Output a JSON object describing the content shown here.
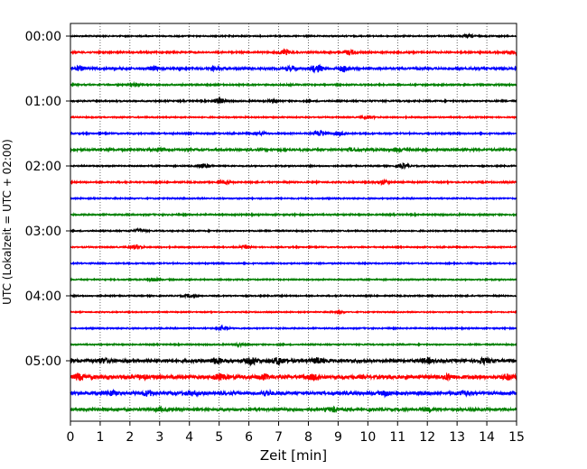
{
  "chart_data": {
    "type": "line",
    "title": "",
    "xlabel": "Zeit  [min]",
    "ylabel": "UTC (Lokalzeit = UTC + 02:00)",
    "xlim": [
      0,
      15
    ],
    "x_ticks": [
      "0",
      "1",
      "2",
      "3",
      "4",
      "5",
      "6",
      "7",
      "8",
      "9",
      "10",
      "11",
      "12",
      "13",
      "14",
      "15"
    ],
    "y_ticks": [
      "00:00",
      "01:00",
      "02:00",
      "03:00",
      "04:00",
      "05:00"
    ],
    "grid": "vertical dotted",
    "colors": [
      "#000000",
      "#ff0000",
      "#0000ff",
      "#008000"
    ],
    "trace_interval_min": 15,
    "traces": [
      {
        "start": "00:00",
        "color": "#000000",
        "noise": 0.6,
        "events": [
          [
            13.4,
            1.4
          ]
        ]
      },
      {
        "start": "00:15",
        "color": "#ff0000",
        "noise": 0.8,
        "events": [
          [
            7.2,
            2.6
          ],
          [
            9.4,
            2.2
          ],
          [
            14.9,
            1.6
          ]
        ]
      },
      {
        "start": "00:30",
        "color": "#0000ff",
        "noise": 1.0,
        "events": [
          [
            0.3,
            2.0
          ],
          [
            2.8,
            1.6
          ],
          [
            4.8,
            1.4
          ],
          [
            7.4,
            1.5
          ],
          [
            8.3,
            3.8
          ],
          [
            9.2,
            3.0
          ]
        ]
      },
      {
        "start": "00:45",
        "color": "#008000",
        "noise": 0.7,
        "events": [
          [
            2.2,
            1.2
          ]
        ]
      },
      {
        "start": "01:00",
        "color": "#000000",
        "noise": 0.7,
        "events": [
          [
            5.0,
            2.6
          ],
          [
            6.8,
            1.2
          ]
        ]
      },
      {
        "start": "01:15",
        "color": "#ff0000",
        "noise": 0.6,
        "events": [
          [
            10.0,
            1.4
          ]
        ]
      },
      {
        "start": "01:30",
        "color": "#0000ff",
        "noise": 0.7,
        "events": [
          [
            6.4,
            1.2
          ],
          [
            8.4,
            3.0
          ],
          [
            9.1,
            1.6
          ]
        ]
      },
      {
        "start": "01:45",
        "color": "#008000",
        "noise": 1.0,
        "events": [
          [
            3.0,
            1.5
          ],
          [
            9.5,
            1.6
          ],
          [
            11.0,
            1.5
          ]
        ]
      },
      {
        "start": "02:00",
        "color": "#000000",
        "noise": 0.6,
        "events": [
          [
            4.5,
            2.4
          ],
          [
            11.2,
            2.0
          ]
        ]
      },
      {
        "start": "02:15",
        "color": "#ff0000",
        "noise": 0.7,
        "events": [
          [
            5.2,
            1.3
          ],
          [
            10.5,
            2.2
          ]
        ]
      },
      {
        "start": "02:30",
        "color": "#0000ff",
        "noise": 0.6,
        "events": []
      },
      {
        "start": "02:45",
        "color": "#008000",
        "noise": 0.7,
        "events": []
      },
      {
        "start": "03:00",
        "color": "#000000",
        "noise": 0.6,
        "events": [
          [
            2.3,
            1.6
          ]
        ]
      },
      {
        "start": "03:15",
        "color": "#ff0000",
        "noise": 0.6,
        "events": [
          [
            2.2,
            2.2
          ],
          [
            5.9,
            1.3
          ]
        ]
      },
      {
        "start": "03:30",
        "color": "#0000ff",
        "noise": 0.6,
        "events": []
      },
      {
        "start": "03:45",
        "color": "#008000",
        "noise": 0.6,
        "events": [
          [
            2.8,
            1.5
          ]
        ]
      },
      {
        "start": "04:00",
        "color": "#000000",
        "noise": 0.6,
        "events": [
          [
            4.0,
            1.3
          ]
        ]
      },
      {
        "start": "04:15",
        "color": "#ff0000",
        "noise": 0.5,
        "events": [
          [
            9.0,
            1.2
          ]
        ]
      },
      {
        "start": "04:30",
        "color": "#0000ff",
        "noise": 0.6,
        "events": [
          [
            5.1,
            1.6
          ]
        ]
      },
      {
        "start": "04:45",
        "color": "#008000",
        "noise": 0.6,
        "events": [
          [
            5.7,
            1.2
          ]
        ]
      },
      {
        "start": "05:00",
        "color": "#000000",
        "noise": 1.5,
        "events": [
          [
            1.1,
            2.2
          ],
          [
            4.9,
            2.6
          ],
          [
            6.1,
            3.5
          ],
          [
            7.0,
            3.4
          ],
          [
            8.3,
            2.4
          ],
          [
            12.0,
            2.0
          ],
          [
            13.9,
            2.2
          ]
        ]
      },
      {
        "start": "05:15",
        "color": "#ff0000",
        "noise": 1.7,
        "events": [
          [
            0.3,
            2.6
          ],
          [
            2.4,
            2.2
          ],
          [
            5.0,
            2.6
          ],
          [
            6.5,
            2.2
          ],
          [
            8.2,
            2.4
          ],
          [
            12.7,
            2.2
          ],
          [
            14.7,
            2.4
          ]
        ]
      },
      {
        "start": "05:30",
        "color": "#0000ff",
        "noise": 1.5,
        "events": [
          [
            1.4,
            2.2
          ],
          [
            2.6,
            2.4
          ],
          [
            4.1,
            2.0
          ],
          [
            6.6,
            2.2
          ],
          [
            10.6,
            2.0
          ],
          [
            13.2,
            2.0
          ]
        ]
      },
      {
        "start": "05:45",
        "color": "#008000",
        "noise": 1.2,
        "events": [
          [
            3.0,
            1.5
          ],
          [
            8.8,
            2.0
          ],
          [
            12.0,
            1.4
          ]
        ]
      }
    ]
  }
}
